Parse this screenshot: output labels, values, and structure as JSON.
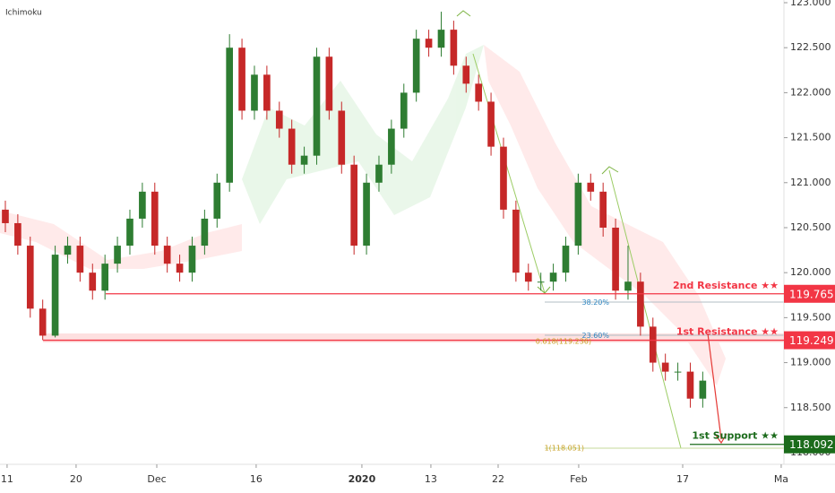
{
  "chart_data": {
    "type": "candlestick",
    "title": "Ichimoku",
    "up_color": "#2e7d32",
    "down_color": "#c62828",
    "xlim": [
      -0.43,
      62.52
    ],
    "xticks": [
      {
        "value": 0.14,
        "label": "11"
      },
      {
        "value": 5.68,
        "label": "20"
      },
      {
        "value": 12.16,
        "label": "Dec"
      },
      {
        "value": 20.14,
        "label": "16"
      },
      {
        "value": 28.63,
        "label": "2020"
      },
      {
        "value": 34.17,
        "label": "13"
      },
      {
        "value": 39.57,
        "label": "22"
      },
      {
        "value": 46.04,
        "label": "Feb"
      },
      {
        "value": 54.39,
        "label": "17"
      },
      {
        "value": 62.3,
        "label": "Ma"
      }
    ],
    "ylim": [
      117.87,
      123.03
    ],
    "yticks": [
      {
        "value": 118,
        "label": "118.000"
      },
      {
        "value": 118.5,
        "label": "118.500"
      },
      {
        "value": 119,
        "label": "119.000"
      },
      {
        "value": 119.5,
        "label": "119.500"
      },
      {
        "value": 120,
        "label": "120.000"
      },
      {
        "value": 120.5,
        "label": "120.500"
      },
      {
        "value": 121,
        "label": "121.000"
      },
      {
        "value": 121.5,
        "label": "121.500"
      },
      {
        "value": 122,
        "label": "122.000"
      },
      {
        "value": 122.5,
        "label": "122.500"
      },
      {
        "value": 123,
        "label": "123.000"
      }
    ],
    "open": [
      120.7,
      120.55,
      120.3,
      119.6,
      119.3,
      120.2,
      120.3,
      120.0,
      119.8,
      120.1,
      120.3,
      120.6,
      120.9,
      120.3,
      120.1,
      120.0,
      120.3,
      120.6,
      121.0,
      122.5,
      121.8,
      122.2,
      121.8,
      121.6,
      121.2,
      121.3,
      122.4,
      121.8,
      121.2,
      120.3,
      121.0,
      121.2,
      121.6,
      122.0,
      122.6,
      122.5,
      122.7,
      122.3,
      122.1,
      121.9,
      121.4,
      120.7,
      120.0,
      119.9,
      119.9,
      120.0,
      120.3,
      121.0,
      120.9,
      120.5,
      119.8,
      119.9,
      119.4,
      119.0,
      118.9,
      118.9,
      118.6
    ],
    "high": [
      120.8,
      120.65,
      120.4,
      119.7,
      120.3,
      120.4,
      120.4,
      120.1,
      120.2,
      120.4,
      120.7,
      121.0,
      121.0,
      120.4,
      120.2,
      120.4,
      120.7,
      121.1,
      122.65,
      122.6,
      122.3,
      122.3,
      121.9,
      121.7,
      121.4,
      122.5,
      122.5,
      121.9,
      121.3,
      121.1,
      121.3,
      121.7,
      122.1,
      122.7,
      122.7,
      122.9,
      122.8,
      122.4,
      122.2,
      122.0,
      121.5,
      120.8,
      120.1,
      120.0,
      120.1,
      120.4,
      121.1,
      121.1,
      121.0,
      120.6,
      120.3,
      120.0,
      119.5,
      119.1,
      119.0,
      119.0,
      118.9
    ],
    "low": [
      120.45,
      120.2,
      119.5,
      119.25,
      119.28,
      120.1,
      119.9,
      119.7,
      119.7,
      120.0,
      120.2,
      120.5,
      120.2,
      120.0,
      119.9,
      119.9,
      120.2,
      120.5,
      120.9,
      121.7,
      121.7,
      121.7,
      121.5,
      121.1,
      121.1,
      121.2,
      121.7,
      121.1,
      120.2,
      120.2,
      120.9,
      121.1,
      121.5,
      121.9,
      122.4,
      122.4,
      122.2,
      122.0,
      121.8,
      121.3,
      120.6,
      119.9,
      119.8,
      119.8,
      119.8,
      119.9,
      120.2,
      120.8,
      120.4,
      119.7,
      119.7,
      119.3,
      118.9,
      118.8,
      118.8,
      118.5,
      118.5
    ],
    "close": [
      120.55,
      120.3,
      119.6,
      119.3,
      120.2,
      120.3,
      120.0,
      119.8,
      120.1,
      120.3,
      120.6,
      120.9,
      120.3,
      120.1,
      120.0,
      120.3,
      120.6,
      121.0,
      122.5,
      121.8,
      122.2,
      121.8,
      121.6,
      121.2,
      121.3,
      122.4,
      121.8,
      121.2,
      120.3,
      121.0,
      121.2,
      121.6,
      122.0,
      122.6,
      122.5,
      122.7,
      122.3,
      122.1,
      121.9,
      121.4,
      120.7,
      120.0,
      119.9,
      119.9,
      120.0,
      120.3,
      121.0,
      120.9,
      120.5,
      119.8,
      119.9,
      119.4,
      119.0,
      118.9,
      118.9,
      118.6,
      118.8
    ],
    "levels": [
      {
        "name": "2nd Resistance ★★",
        "value": 119.765,
        "color": "#f23645"
      },
      {
        "name": "1st Resistance ★★",
        "value": 119.249,
        "color": "#f23645"
      },
      {
        "name": "1st Support ★★",
        "value": 118.092,
        "color": "#1b6b1b"
      }
    ],
    "fib_labels": [
      {
        "label": "38.20%",
        "value": 119.67,
        "color": "#2e86c1"
      },
      {
        "label": "23.60%",
        "value": 119.3,
        "color": "#2e86c1"
      },
      {
        "label": "0.618(119.236)",
        "value": 119.236,
        "color": "#c9a227"
      },
      {
        "label": "1(118.051)",
        "value": 118.051,
        "color": "#c9a227"
      }
    ]
  }
}
